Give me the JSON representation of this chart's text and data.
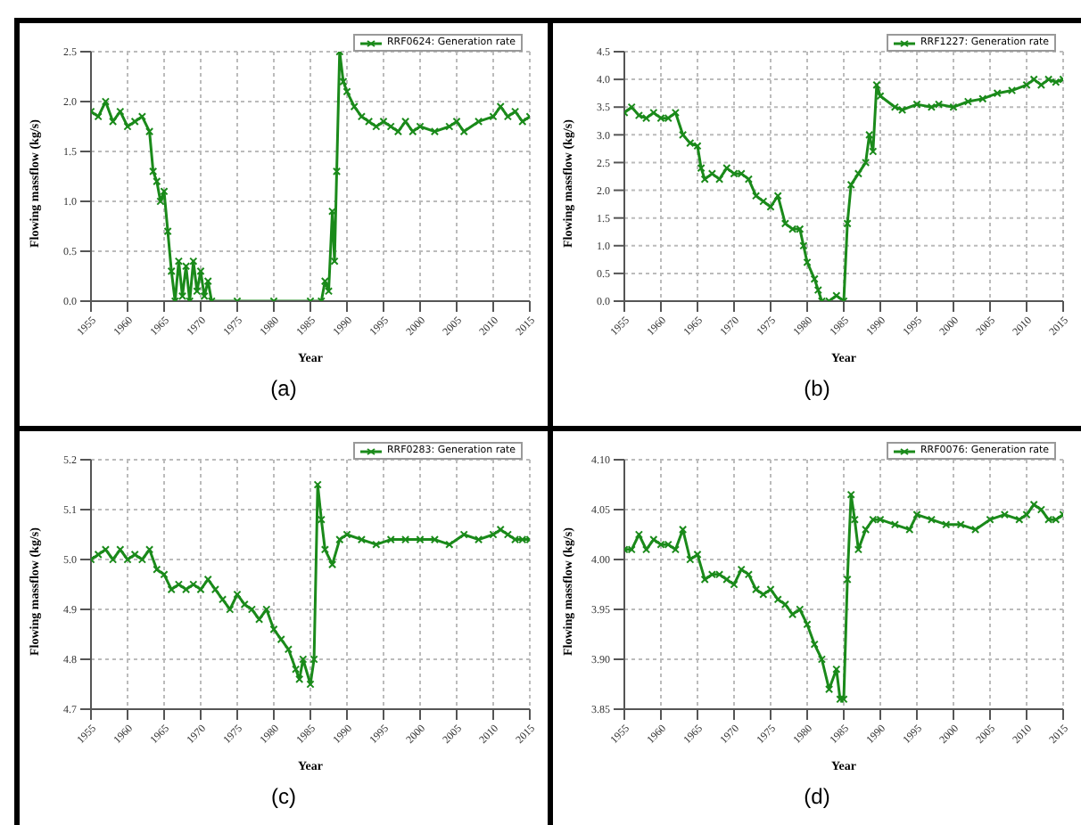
{
  "chart_data": [
    {
      "type": "line",
      "xlabel": "Year",
      "ylabel": "Flowing massflow (kg/s)",
      "annotations": [
        "(a)"
      ],
      "marker": "cross",
      "grid": true,
      "legend": "top right",
      "xlim": [
        1955,
        2015
      ],
      "xticks": [
        1955,
        1960,
        1965,
        1970,
        1975,
        1980,
        1985,
        1990,
        1995,
        2000,
        2005,
        2010,
        2015
      ],
      "ylim": [
        0,
        2.5
      ],
      "yticks": [
        {
          "value": 0,
          "label": "0.0"
        },
        0.5,
        {
          "value": 1,
          "label": "1.0"
        },
        1.5,
        {
          "value": 2,
          "label": "2.0"
        },
        2.5
      ],
      "x": [
        1955,
        1956,
        1957,
        1958,
        1959,
        1960,
        1961,
        1962,
        1963,
        1963.5,
        1964,
        1964.5,
        1965,
        1965.5,
        1966,
        1966.5,
        1967,
        1967.5,
        1968,
        1968.5,
        1969,
        1969.5,
        1970,
        1970.5,
        1971,
        1971.5,
        1975,
        1980,
        1985,
        1986.5,
        1987,
        1987.5,
        1988,
        1988.3,
        1988.6,
        1989,
        1989.5,
        1990,
        1991,
        1992,
        1993,
        1994,
        1995,
        1996,
        1997,
        1998,
        1999,
        2000,
        2002,
        2004,
        2005,
        2006,
        2008,
        2010,
        2011,
        2012,
        2013,
        2014,
        2015
      ],
      "series": [
        {
          "name": "RRF0624: Generation rate",
          "color": "#1a8a1a",
          "values": [
            1.9,
            1.85,
            2.0,
            1.8,
            1.9,
            1.75,
            1.8,
            1.85,
            1.7,
            1.3,
            1.2,
            1.0,
            1.1,
            0.7,
            0.3,
            0.0,
            0.4,
            0.05,
            0.35,
            0.0,
            0.4,
            0.1,
            0.3,
            0.05,
            0.2,
            0,
            0,
            0,
            0,
            0,
            0.2,
            0.1,
            0.9,
            0.4,
            1.3,
            2.5,
            2.2,
            2.1,
            1.95,
            1.85,
            1.8,
            1.75,
            1.8,
            1.75,
            1.7,
            1.8,
            1.7,
            1.75,
            1.7,
            1.75,
            1.8,
            1.7,
            1.8,
            1.85,
            1.95,
            1.85,
            1.9,
            1.8,
            1.85
          ]
        }
      ]
    },
    {
      "type": "line",
      "xlabel": "Year",
      "ylabel": "Flowing massflow (kg/s)",
      "annotations": [
        "(b)"
      ],
      "marker": "cross",
      "grid": true,
      "legend": "top right",
      "xlim": [
        1955,
        2015
      ],
      "xticks": [
        1955,
        1960,
        1965,
        1970,
        1975,
        1980,
        1985,
        1990,
        1995,
        2000,
        2005,
        2010,
        2015
      ],
      "ylim": [
        0,
        4.5
      ],
      "yticks": [
        {
          "value": 0,
          "label": "0.0"
        },
        0.5,
        {
          "value": 1,
          "label": "1.0"
        },
        1.5,
        {
          "value": 2,
          "label": "2.0"
        },
        2.5,
        {
          "value": 3,
          "label": "3.0"
        },
        3.5,
        {
          "value": 4,
          "label": "4.0"
        },
        4.5
      ],
      "x": [
        1955,
        1956,
        1957,
        1958,
        1959,
        1960,
        1961,
        1962,
        1963,
        1964,
        1965,
        1965.5,
        1966,
        1967,
        1968,
        1969,
        1970,
        1971,
        1972,
        1973,
        1974,
        1975,
        1976,
        1977,
        1978,
        1979,
        1979.5,
        1980,
        1981,
        1981.5,
        1982,
        1983,
        1984,
        1985,
        1985.5,
        1986,
        1987,
        1988,
        1988.5,
        1989,
        1989.5,
        1990,
        1992,
        1993,
        1995,
        1997,
        1998,
        2000,
        2002,
        2004,
        2006,
        2008,
        2010,
        2011,
        2012,
        2013,
        2014,
        2015
      ],
      "series": [
        {
          "name": "RRF1227: Generation rate",
          "color": "#1a8a1a",
          "values": [
            3.4,
            3.5,
            3.35,
            3.3,
            3.4,
            3.3,
            3.3,
            3.4,
            3.0,
            2.85,
            2.8,
            2.4,
            2.2,
            2.3,
            2.2,
            2.4,
            2.3,
            2.3,
            2.2,
            1.9,
            1.8,
            1.7,
            1.9,
            1.4,
            1.3,
            1.3,
            1.0,
            0.7,
            0.4,
            0.2,
            0.0,
            0.0,
            0.1,
            0.0,
            1.4,
            2.1,
            2.3,
            2.5,
            3.0,
            2.7,
            3.9,
            3.7,
            3.5,
            3.45,
            3.55,
            3.5,
            3.55,
            3.5,
            3.6,
            3.65,
            3.75,
            3.8,
            3.9,
            4.0,
            3.9,
            4.0,
            3.95,
            4.0
          ]
        }
      ]
    },
    {
      "type": "line",
      "xlabel": "Year",
      "ylabel": "Flowing massflow (kg/s)",
      "annotations": [
        "(c)"
      ],
      "marker": "cross",
      "grid": true,
      "legend": "top right",
      "xlim": [
        1955,
        2015
      ],
      "xticks": [
        1955,
        1960,
        1965,
        1970,
        1975,
        1980,
        1985,
        1990,
        1995,
        2000,
        2005,
        2010,
        2015
      ],
      "ylim": [
        4.7,
        5.2
      ],
      "yticks": [
        4.7,
        4.8,
        4.9,
        {
          "value": 5,
          "label": "5.0"
        },
        5.1,
        5.2
      ],
      "x": [
        1955,
        1956,
        1957,
        1958,
        1959,
        1960,
        1961,
        1962,
        1963,
        1964,
        1965,
        1966,
        1967,
        1968,
        1969,
        1970,
        1971,
        1972,
        1973,
        1974,
        1975,
        1976,
        1977,
        1978,
        1979,
        1980,
        1981,
        1982,
        1983,
        1983.5,
        1984,
        1985,
        1985.5,
        1986,
        1986.5,
        1987,
        1988,
        1989,
        1990,
        1992,
        1994,
        1996,
        1998,
        2000,
        2002,
        2004,
        2006,
        2008,
        2010,
        2011,
        2012,
        2013,
        2014,
        2015
      ],
      "series": [
        {
          "name": "RRF0283: Generation rate",
          "color": "#1a8a1a",
          "values": [
            5.0,
            5.01,
            5.02,
            5.0,
            5.02,
            5.0,
            5.01,
            5.0,
            5.02,
            4.98,
            4.97,
            4.94,
            4.95,
            4.94,
            4.95,
            4.94,
            4.96,
            4.94,
            4.92,
            4.9,
            4.93,
            4.91,
            4.9,
            4.88,
            4.9,
            4.86,
            4.84,
            4.82,
            4.78,
            4.76,
            4.8,
            4.75,
            4.8,
            5.15,
            5.08,
            5.02,
            4.99,
            5.04,
            5.05,
            5.04,
            5.03,
            5.04,
            5.04,
            5.04,
            5.04,
            5.03,
            5.05,
            5.04,
            5.05,
            5.06,
            5.05,
            5.04,
            5.04,
            5.04
          ]
        }
      ]
    },
    {
      "type": "line",
      "xlabel": "Year",
      "ylabel": "Flowing massflow (kg/s)",
      "annotations": [
        "(d)"
      ],
      "marker": "cross",
      "grid": true,
      "legend": "top right",
      "xlim": [
        1955,
        2015
      ],
      "xticks": [
        1955,
        1960,
        1965,
        1970,
        1975,
        1980,
        1985,
        1990,
        1995,
        2000,
        2005,
        2010,
        2015
      ],
      "ylim": [
        3.85,
        4.1
      ],
      "yticks": [
        3.85,
        {
          "value": 3.9,
          "label": "3.90"
        },
        3.95,
        {
          "value": 4,
          "label": "4.00"
        },
        4.05,
        {
          "value": 4.1,
          "label": "4.10"
        }
      ],
      "x": [
        1955,
        1956,
        1957,
        1958,
        1959,
        1960,
        1961,
        1962,
        1963,
        1964,
        1965,
        1966,
        1967,
        1968,
        1969,
        1970,
        1971,
        1972,
        1973,
        1974,
        1975,
        1976,
        1977,
        1978,
        1979,
        1980,
        1981,
        1982,
        1983,
        1984,
        1984.5,
        1985,
        1985.5,
        1986,
        1986.5,
        1987,
        1988,
        1989,
        1990,
        1992,
        1994,
        1995,
        1997,
        1999,
        2001,
        2003,
        2005,
        2007,
        2009,
        2010,
        2011,
        2012,
        2013,
        2014,
        2015
      ],
      "series": [
        {
          "name": "RRF0076: Generation rate",
          "color": "#1a8a1a",
          "values": [
            4.01,
            4.01,
            4.025,
            4.01,
            4.02,
            4.015,
            4.015,
            4.01,
            4.03,
            4.0,
            4.005,
            3.98,
            3.985,
            3.985,
            3.98,
            3.975,
            3.99,
            3.985,
            3.97,
            3.965,
            3.97,
            3.96,
            3.955,
            3.945,
            3.95,
            3.935,
            3.915,
            3.9,
            3.87,
            3.89,
            3.86,
            3.86,
            3.98,
            4.065,
            4.04,
            4.01,
            4.03,
            4.04,
            4.04,
            4.035,
            4.03,
            4.045,
            4.04,
            4.035,
            4.035,
            4.03,
            4.04,
            4.045,
            4.04,
            4.045,
            4.055,
            4.05,
            4.04,
            4.04,
            4.045
          ]
        }
      ]
    }
  ]
}
